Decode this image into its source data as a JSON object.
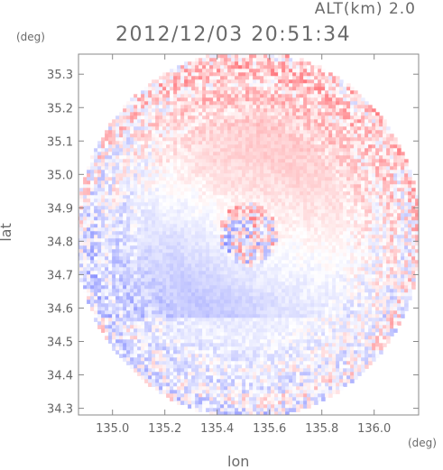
{
  "header": {
    "altitude_label": "ALT(km)  2.0",
    "timestamp": "2012/12/03 20:51:34"
  },
  "chart_data": {
    "type": "heatmap",
    "title": "2012/12/03 20:51:34",
    "subtitle": "ALT(km)  2.0",
    "xlabel": "lon",
    "ylabel": "lat",
    "x_unit": "(deg)",
    "y_unit": "(deg)",
    "xlim": [
      134.87,
      136.17
    ],
    "ylim": [
      34.28,
      35.36
    ],
    "x_ticks": [
      135.0,
      135.2,
      135.4,
      135.6,
      135.8,
      136.0
    ],
    "x_tick_labels": [
      "135.0",
      "135.2",
      "135.4",
      "135.6",
      "135.8",
      "136.0"
    ],
    "y_ticks": [
      34.3,
      34.4,
      34.5,
      34.6,
      34.7,
      34.8,
      34.9,
      35.0,
      35.1,
      35.2,
      35.3
    ],
    "y_tick_labels": [
      "34.3",
      "34.4",
      "34.5",
      "34.6",
      "34.7",
      "34.8",
      "34.9",
      "35.0",
      "35.1",
      "35.2",
      "35.3"
    ],
    "grid": false,
    "legend": "none",
    "colormap": {
      "negative": "#6f78ff",
      "zero": "#ffffff",
      "positive": "#ff4d55"
    },
    "radar_center": {
      "lon": 135.52,
      "lat": 34.82
    },
    "radar_range_deg": {
      "lon": 0.66,
      "lat": 0.55
    }
  }
}
